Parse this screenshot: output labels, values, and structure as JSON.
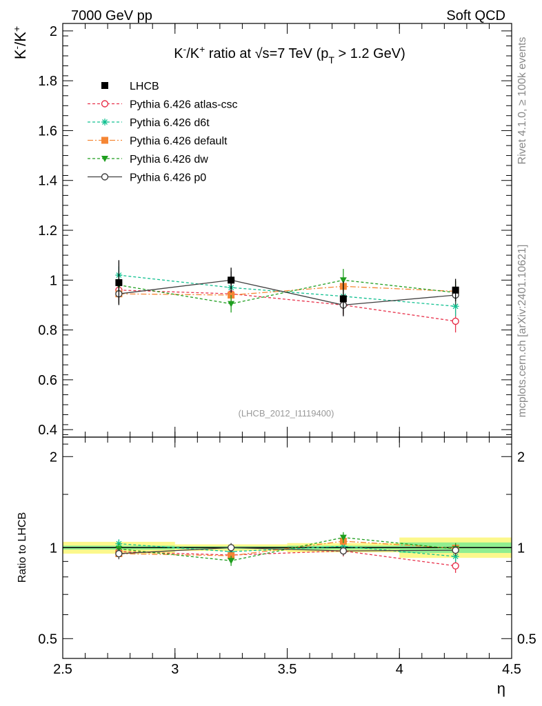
{
  "header": {
    "left_label": "7000 GeV pp",
    "right_label": "Soft QCD",
    "side_label_top": "Rivet 4.1.0, ≥ 100k events",
    "side_label_bottom": "mcplots.cern.ch [arXiv:2401.10621]"
  },
  "chart_data": [
    {
      "type": "scatter",
      "panel": "main",
      "title_parts": [
        "K",
        "-",
        "/K",
        "+",
        " ratio at ",
        "√s",
        "=7 TeV (p",
        "T",
        " > 1.2 GeV)"
      ],
      "ylabel_parts": [
        "K",
        "-",
        "/K",
        "+"
      ],
      "xlabel": "η",
      "xlim": [
        2.5,
        4.5
      ],
      "ylim": [
        0.37,
        2.03
      ],
      "yticks": [
        0.4,
        0.6,
        0.8,
        1,
        1.2,
        1.4,
        1.6,
        1.8,
        2
      ],
      "ytick_labels": [
        "0.4",
        "0.6",
        "0.8",
        "1",
        "1.2",
        "1.4",
        "1.6",
        "1.8",
        "2"
      ],
      "analysis_tag": "(LHCB_2012_I1119400)",
      "legend_position": "top-left",
      "series": [
        {
          "name": "LHCB",
          "color": "#000000",
          "marker": "square-filled",
          "dash": "none",
          "x": [
            2.75,
            3.25,
            3.75,
            4.25
          ],
          "values": [
            0.99,
            1.0,
            0.925,
            0.96
          ],
          "err": [
            0.09,
            0.05,
            0.07,
            0.045
          ]
        },
        {
          "name": "Pythia 6.426 atlas-csc",
          "color": "#e8304a",
          "marker": "circle-open",
          "dash": "4,3",
          "x": [
            2.75,
            3.25,
            3.75,
            4.25
          ],
          "values": [
            0.96,
            0.945,
            0.9,
            0.835
          ],
          "err": [
            0.04,
            0.035,
            0.04,
            0.045
          ]
        },
        {
          "name": "Pythia 6.426 d6t",
          "color": "#10c090",
          "marker": "star",
          "dash": "4,3",
          "x": [
            2.75,
            3.25,
            3.75,
            4.25
          ],
          "values": [
            1.02,
            0.97,
            0.935,
            0.895
          ],
          "err": [
            0.035,
            0.03,
            0.04,
            0.04
          ]
        },
        {
          "name": "Pythia 6.426 default",
          "color": "#f58634",
          "marker": "square-filled",
          "dash": "8,3,2,3",
          "x": [
            2.75,
            3.25,
            3.75,
            4.25
          ],
          "values": [
            0.945,
            0.94,
            0.975,
            0.955
          ],
          "err": [
            0.035,
            0.03,
            0.035,
            0.04
          ]
        },
        {
          "name": "Pythia 6.426 dw",
          "color": "#1e9e1e",
          "marker": "triangle-down",
          "dash": "4,3",
          "x": [
            2.75,
            3.25,
            3.75,
            4.25
          ],
          "values": [
            0.98,
            0.905,
            1.0,
            0.95
          ],
          "err": [
            0.04,
            0.035,
            0.045,
            0.045
          ]
        },
        {
          "name": "Pythia 6.426 p0",
          "color": "#404040",
          "marker": "circle-open",
          "dash": "none",
          "x": [
            2.75,
            3.25,
            3.75,
            4.25
          ],
          "values": [
            0.945,
            1.0,
            0.9,
            0.94
          ],
          "err": [
            0.04,
            0.035,
            0.035,
            0.04
          ]
        }
      ]
    },
    {
      "type": "scatter",
      "panel": "ratio",
      "ylabel": "Ratio to LHCB",
      "yscale": "log",
      "xlim": [
        2.5,
        4.5
      ],
      "ylim": [
        0.43,
        2.32
      ],
      "yticks": [
        0.5,
        1,
        2
      ],
      "ytick_labels": [
        "0.5",
        "1",
        "2"
      ],
      "xticks": [
        2.5,
        3,
        3.5,
        4,
        4.5
      ],
      "xtick_labels": [
        "2.5",
        "3",
        "3.5",
        "4",
        "4.5"
      ],
      "bands": {
        "stat_color": "#90ee90",
        "total_color": "#fcf88c",
        "bins": [
          {
            "x": [
              2.5,
              3.0
            ],
            "stat": [
              0.985,
              1.015
            ],
            "total": [
              0.955,
              1.045
            ]
          },
          {
            "x": [
              3.0,
              3.5
            ],
            "stat": [
              0.99,
              1.01
            ],
            "total": [
              0.975,
              1.025
            ]
          },
          {
            "x": [
              3.5,
              4.0
            ],
            "stat": [
              0.985,
              1.015
            ],
            "total": [
              0.965,
              1.035
            ]
          },
          {
            "x": [
              4.0,
              4.5
            ],
            "stat": [
              0.96,
              1.04
            ],
            "total": [
              0.925,
              1.08
            ]
          }
        ]
      },
      "series": [
        {
          "name": "Pythia 6.426 atlas-csc",
          "x": [
            2.75,
            3.25,
            3.75,
            4.25
          ],
          "values": [
            0.97,
            0.945,
            0.975,
            0.87
          ],
          "err": [
            0.035,
            0.035,
            0.04,
            0.045
          ]
        },
        {
          "name": "Pythia 6.426 d6t",
          "x": [
            2.75,
            3.25,
            3.75,
            4.25
          ],
          "values": [
            1.03,
            0.97,
            1.01,
            0.935
          ],
          "err": [
            0.035,
            0.03,
            0.04,
            0.04
          ]
        },
        {
          "name": "Pythia 6.426 default",
          "x": [
            2.75,
            3.25,
            3.75,
            4.25
          ],
          "values": [
            0.955,
            0.94,
            1.05,
            0.995
          ],
          "err": [
            0.035,
            0.03,
            0.035,
            0.04
          ]
        },
        {
          "name": "Pythia 6.426 dw",
          "x": [
            2.75,
            3.25,
            3.75,
            4.25
          ],
          "values": [
            0.99,
            0.905,
            1.08,
            0.99
          ],
          "err": [
            0.04,
            0.035,
            0.045,
            0.045
          ]
        },
        {
          "name": "Pythia 6.426 p0",
          "x": [
            2.75,
            3.25,
            3.75,
            4.25
          ],
          "values": [
            0.955,
            1.0,
            0.975,
            0.98
          ],
          "err": [
            0.04,
            0.035,
            0.035,
            0.04
          ]
        }
      ]
    }
  ]
}
